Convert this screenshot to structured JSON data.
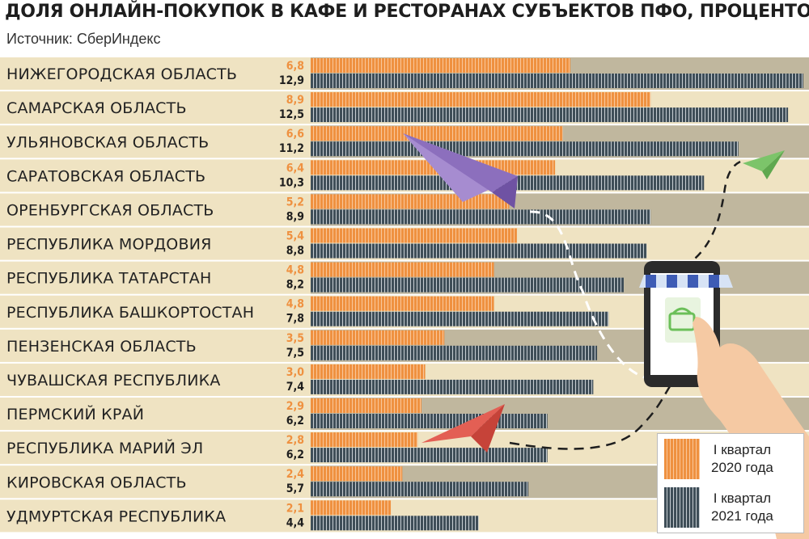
{
  "header": {
    "title": "ДОЛЯ ОНЛАЙН-ПОКУПОК В КАФЕ И РЕСТОРАНАХ СУБЪЕКТОВ ПФО, ПРОЦЕНТОВ",
    "source": "Источник: СберИндекс"
  },
  "legend": {
    "q1_2020_line1": "I квартал",
    "q1_2020_line2": "2020 года",
    "q1_2021_line1": "I квартал",
    "q1_2021_line2": "2021 года"
  },
  "colors": {
    "series_2020": "#ef9140",
    "series_2021": "#3f4e58",
    "row_light": "#efe3c2",
    "row_dark": "#c0b79e"
  },
  "chart_data": {
    "type": "bar",
    "orientation": "horizontal",
    "categories": [
      "НИЖЕГОРОДСКАЯ ОБЛАСТЬ",
      "САМАРСКАЯ ОБЛАСТЬ",
      "УЛЬЯНОВСКАЯ ОБЛАСТЬ",
      "САРАТОВСКАЯ ОБЛАСТЬ",
      "ОРЕНБУРГСКАЯ ОБЛАСТЬ",
      "РЕСПУБЛИКА МОРДОВИЯ",
      "РЕСПУБЛИКА ТАТАРСТАН",
      "РЕСПУБЛИКА БАШКОРТОСТАН",
      "ПЕНЗЕНСКАЯ ОБЛАСТЬ",
      "ЧУВАШСКАЯ РЕСПУБЛИКА",
      "ПЕРМСКИЙ КРАЙ",
      "РЕСПУБЛИКА МАРИЙ ЭЛ",
      "КИРОВСКАЯ ОБЛАСТЬ",
      "УДМУРТСКАЯ РЕСПУБЛИКА"
    ],
    "series": [
      {
        "name": "I квартал 2020 года",
        "values": [
          6.8,
          8.9,
          6.6,
          6.4,
          5.2,
          5.4,
          4.8,
          4.8,
          3.5,
          3.0,
          2.9,
          2.8,
          2.4,
          2.1
        ],
        "labels": [
          "6,8",
          "8,9",
          "6,6",
          "6,4",
          "5,2",
          "5,4",
          "4,8",
          "4,8",
          "3,5",
          "3,0",
          "2,9",
          "2,8",
          "2,4",
          "2,1"
        ]
      },
      {
        "name": "I квартал 2021 года",
        "values": [
          12.9,
          12.5,
          11.2,
          10.3,
          8.9,
          8.8,
          8.2,
          7.8,
          7.5,
          7.4,
          6.2,
          6.2,
          5.7,
          4.4
        ],
        "labels": [
          "12,9",
          "12,5",
          "11,2",
          "10,3",
          "8,9",
          "8,8",
          "8,2",
          "7,8",
          "7,5",
          "7,4",
          "6,2",
          "6,2",
          "5,7",
          "4,4"
        ]
      }
    ],
    "xlim": [
      0,
      12.9
    ],
    "grid": false,
    "legend_position": "bottom-right"
  }
}
